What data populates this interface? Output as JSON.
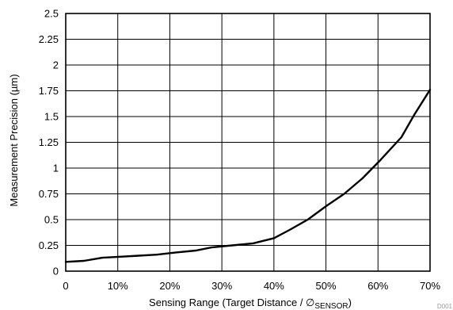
{
  "chart_data": {
    "type": "line",
    "title": "",
    "xlabel_main": "Sensing Range (Target Distance / ",
    "xlabel_symbol": "∅",
    "xlabel_subscript": "SENSOR",
    "xlabel_close": ")",
    "ylabel": "Measurement Precision (µm)",
    "xlim": [
      0,
      70
    ],
    "ylim": [
      0,
      2.5
    ],
    "x_ticks": [
      0,
      10,
      20,
      30,
      40,
      50,
      60,
      70
    ],
    "x_tick_labels": [
      "0",
      "10%",
      "20%",
      "30%",
      "40%",
      "50%",
      "60%",
      "70%"
    ],
    "y_ticks": [
      0,
      0.25,
      0.5,
      0.75,
      1,
      1.25,
      1.5,
      1.75,
      2,
      2.25,
      2.5
    ],
    "y_tick_labels": [
      "0",
      "0.25",
      "0.5",
      "0.75",
      "1",
      "1.25",
      "1.5",
      "1.75",
      "2",
      "2.25",
      "2.5"
    ],
    "grid": true,
    "figure_code": "D001",
    "series": [
      {
        "x": [
          0,
          3.5,
          7,
          10.5,
          14,
          17.5,
          21,
          25,
          28,
          32,
          36,
          40,
          43,
          46.5,
          50,
          53.5,
          57,
          60.5,
          64.5,
          67,
          70
        ],
        "y": [
          0.09,
          0.1,
          0.13,
          0.14,
          0.15,
          0.16,
          0.18,
          0.2,
          0.23,
          0.25,
          0.27,
          0.32,
          0.4,
          0.5,
          0.63,
          0.75,
          0.9,
          1.08,
          1.3,
          1.52,
          1.76
        ]
      }
    ]
  }
}
